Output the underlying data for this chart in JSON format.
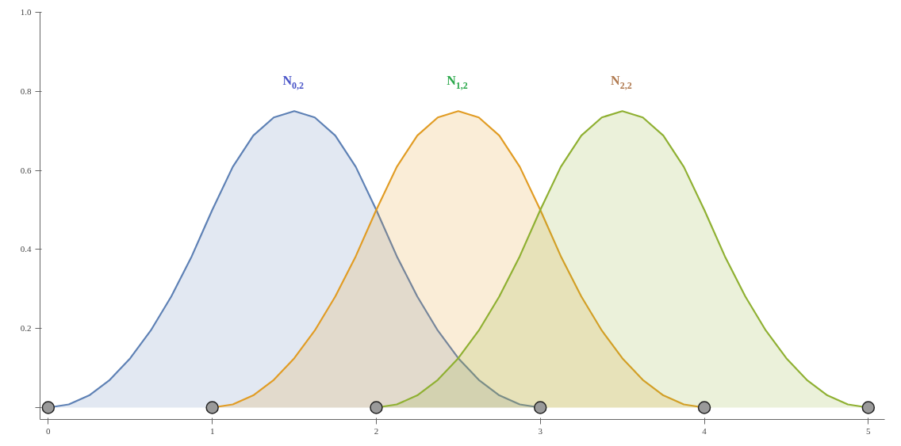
{
  "chart_data": {
    "type": "area",
    "series": [
      {
        "color": "#5e81b5",
        "x": [
          0,
          0.125,
          0.25,
          0.375,
          0.5,
          0.625,
          0.75,
          0.875,
          1,
          1.125,
          1.25,
          1.375,
          1.5,
          1.625,
          1.75,
          1.875,
          2,
          2.125,
          2.25,
          2.375,
          2.5,
          2.625,
          2.75,
          2.875,
          3
        ],
        "values": [
          0,
          0.008,
          0.031,
          0.07,
          0.125,
          0.195,
          0.281,
          0.383,
          0.5,
          0.609,
          0.688,
          0.734,
          0.75,
          0.734,
          0.688,
          0.609,
          0.5,
          0.383,
          0.281,
          0.195,
          0.125,
          0.07,
          0.031,
          0.008,
          0
        ]
      },
      {
        "color": "#e19c24",
        "x": [
          1,
          1.125,
          1.25,
          1.375,
          1.5,
          1.625,
          1.75,
          1.875,
          2,
          2.125,
          2.25,
          2.375,
          2.5,
          2.625,
          2.75,
          2.875,
          3,
          3.125,
          3.25,
          3.375,
          3.5,
          3.625,
          3.75,
          3.875,
          4
        ],
        "values": [
          0,
          0.008,
          0.031,
          0.07,
          0.125,
          0.195,
          0.281,
          0.383,
          0.5,
          0.609,
          0.688,
          0.734,
          0.75,
          0.734,
          0.688,
          0.609,
          0.5,
          0.383,
          0.281,
          0.195,
          0.125,
          0.07,
          0.031,
          0.008,
          0
        ]
      },
      {
        "color": "#8fb032",
        "x": [
          2,
          2.125,
          2.25,
          2.375,
          2.5,
          2.625,
          2.75,
          2.875,
          3,
          3.125,
          3.25,
          3.375,
          3.5,
          3.625,
          3.75,
          3.875,
          4,
          4.125,
          4.25,
          4.375,
          4.5,
          4.625,
          4.75,
          4.875,
          5
        ],
        "values": [
          0,
          0.008,
          0.031,
          0.07,
          0.125,
          0.195,
          0.281,
          0.383,
          0.5,
          0.609,
          0.688,
          0.734,
          0.75,
          0.734,
          0.688,
          0.609,
          0.5,
          0.383,
          0.281,
          0.195,
          0.125,
          0.07,
          0.031,
          0.008,
          0
        ]
      },
      {
        "type": "scatter",
        "color": "#9a9a9a",
        "marker": "circle",
        "x": [
          0,
          1,
          2,
          3,
          4,
          5
        ],
        "values": [
          0,
          0,
          0,
          0,
          0,
          0
        ]
      }
    ],
    "annotations": [
      "N$_{0,2}$",
      "N$_{1,2}$",
      "N$_{2,2}$"
    ],
    "xlim": [
      -0.05,
      5.1
    ],
    "ylim": [
      -0.03,
      1.0
    ],
    "xticks": [
      0,
      1,
      2,
      3,
      4,
      5
    ],
    "yticks": [
      {
        "value": 0,
        "label": null
      },
      0.2,
      0.4,
      0.6,
      0.8,
      {
        "value": 1,
        "label": "1.0"
      }
    ],
    "grid": false
  }
}
